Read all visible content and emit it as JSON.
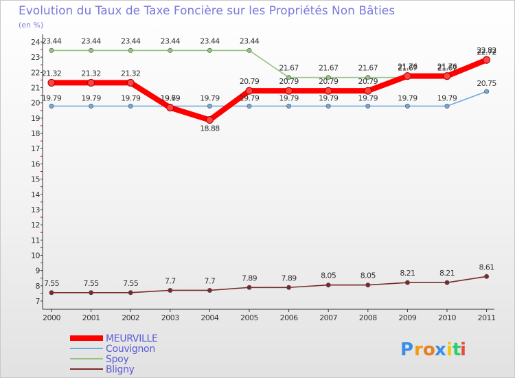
{
  "chart_data": {
    "type": "line",
    "title": "Evolution du Taux de Taxe Foncière sur les Propriétés Non Bâties",
    "unit_label": "(en %)",
    "xlabel": "",
    "ylabel": "",
    "x": [
      "2000",
      "2001",
      "2002",
      "2003",
      "2004",
      "2005",
      "2006",
      "2007",
      "2008",
      "2009",
      "2010",
      "2011"
    ],
    "ylim": [
      7,
      24
    ],
    "yticks": [
      7,
      8,
      9,
      10,
      11,
      12,
      13,
      14,
      15,
      16,
      17,
      18,
      19,
      20,
      21,
      22,
      23,
      24
    ],
    "grid": false,
    "legend_position": "bottom-left",
    "series": [
      {
        "name": "MEURVILLE",
        "color": "#ff0000",
        "values": [
          21.32,
          21.32,
          21.32,
          19.69,
          18.88,
          20.79,
          20.79,
          20.79,
          20.79,
          21.76,
          21.76,
          22.82
        ],
        "labels": [
          "21.32",
          "21.32",
          "21.32",
          "19.69",
          "18.88",
          "20.79",
          "20.79",
          "20.79",
          "20.79",
          "21.76",
          "21.76",
          "22.82"
        ]
      },
      {
        "name": "Couvignon",
        "color": "#6fa8dc",
        "values": [
          19.79,
          19.79,
          19.79,
          19.79,
          19.79,
          19.79,
          19.79,
          19.79,
          19.79,
          19.79,
          19.79,
          20.75
        ],
        "labels": [
          "19.79",
          "19.79",
          "19.79",
          "19.79",
          "19.79",
          "19.79",
          "19.79",
          "19.79",
          "19.79",
          "19.79",
          "19.79",
          "20.75"
        ]
      },
      {
        "name": "Spoy",
        "color": "#93c47d",
        "values": [
          23.44,
          23.44,
          23.44,
          23.44,
          23.44,
          23.44,
          21.67,
          21.67,
          21.67,
          21.67,
          21.67,
          22.72
        ],
        "labels": [
          "23.44",
          "23.44",
          "23.44",
          "23.44",
          "23.44",
          "23.44",
          "21.67",
          "21.67",
          "21.67",
          "21.67",
          "21.67",
          "22.72"
        ]
      },
      {
        "name": "Bligny",
        "color": "#7a2a2a",
        "values": [
          7.55,
          7.55,
          7.55,
          7.7,
          7.7,
          7.89,
          7.89,
          8.05,
          8.05,
          8.21,
          8.21,
          8.61
        ],
        "labels": [
          "7.55",
          "7.55",
          "7.55",
          "7.7",
          "7.7",
          "7.89",
          "7.89",
          "8.05",
          "8.05",
          "8.21",
          "8.21",
          "8.61"
        ]
      }
    ]
  },
  "brand": {
    "logo_letters": [
      "P",
      "r",
      "o",
      "x",
      "i",
      "t",
      "i"
    ],
    "logo_colors": [
      "#3a8ee6",
      "#f39c12",
      "#e67e22",
      "#3a8ee6",
      "#f1c40f",
      "#2ecc71",
      "#e74c3c"
    ]
  }
}
